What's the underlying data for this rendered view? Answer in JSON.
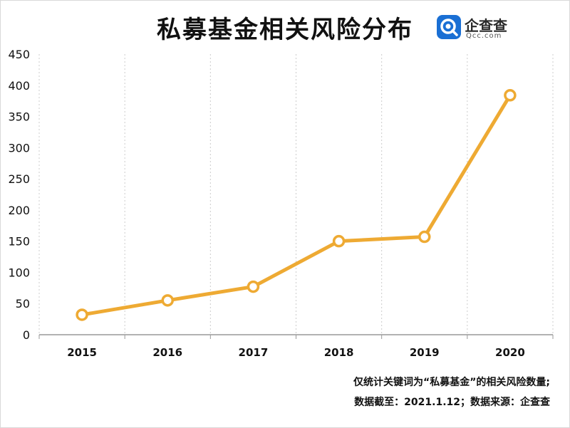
{
  "brand": {
    "name": "企查查",
    "domain": "Qcc.com",
    "logo_color": "#1a6fd4"
  },
  "colors": {
    "line": "#eeaa33",
    "marker_fill": "#ffffff",
    "grid": "#cccccc",
    "axis": "#999999"
  },
  "footnotes": {
    "line1": "仅统计关键词为“私募基金”的相关风险数量;",
    "line2": "数据截至：2021.1.12；数据来源：企查查"
  },
  "chart_data": {
    "type": "line",
    "title": "私募基金相关风险分布",
    "xlabel": "",
    "ylabel": "",
    "categories": [
      "2015",
      "2016",
      "2017",
      "2018",
      "2019",
      "2020"
    ],
    "series": [
      {
        "values": [
          32,
          55,
          77,
          150,
          157,
          384
        ]
      }
    ],
    "ylim": [
      0,
      450
    ],
    "yticks": [
      "0",
      "50",
      "100",
      "150",
      "200",
      "250",
      "300",
      "350",
      "400",
      "450"
    ],
    "grid": "vertical dotted",
    "legend": "none"
  }
}
